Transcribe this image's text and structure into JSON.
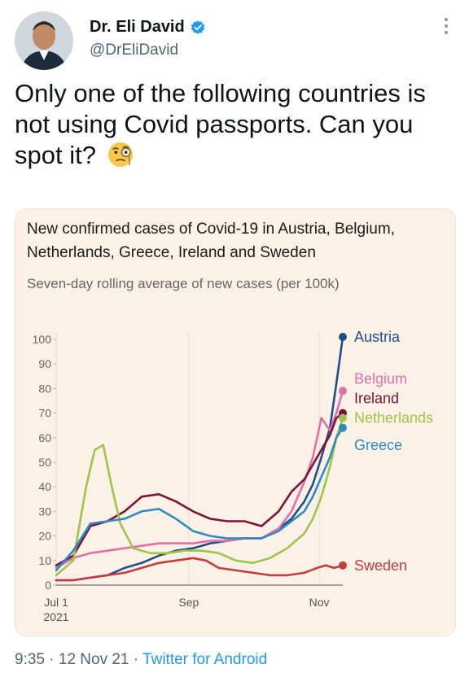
{
  "author": {
    "name": "Dr. Eli David",
    "handle": "@DrEliDavid",
    "avatar_icon": "avatar-photo",
    "verified_color": "#1d9bf0"
  },
  "tweet": {
    "text": "Only one of the following countries is not using Covid passports. Can you spot it?",
    "emoji_icon": "face-with-monocle"
  },
  "footer": {
    "time": "9:35",
    "separator": "·",
    "date": "12 Nov 21",
    "source": "Twitter for Android"
  },
  "chart_data": {
    "type": "line",
    "title": "New confirmed cases of Covid-19 in Austria, Belgium, Netherlands, Greece, Ireland and Sweden",
    "subtitle": "Seven-day rolling average of new cases (per 100k)",
    "ylim": [
      0,
      100
    ],
    "yticks": [
      0,
      10,
      20,
      30,
      40,
      50,
      60,
      70,
      80,
      90,
      100
    ],
    "xticks": [
      {
        "label": "Jul 1",
        "sublabel": "2021",
        "day": 0
      },
      {
        "label": "Sep",
        "sublabel": "",
        "day": 62
      },
      {
        "label": "Nov",
        "sublabel": "",
        "day": 123
      }
    ],
    "xlim_days": [
      0,
      134
    ],
    "grid": "vertical",
    "series": [
      {
        "name": "Austria",
        "color": "#1f4e8c",
        "x": [
          0,
          8,
          16,
          24,
          32,
          40,
          48,
          56,
          64,
          72,
          80,
          88,
          96,
          104,
          110,
          116,
          120,
          124,
          128,
          131,
          134
        ],
        "y": [
          2,
          2,
          3,
          4,
          7,
          9,
          12,
          14,
          15,
          17,
          18,
          19,
          19,
          23,
          27,
          34,
          41,
          52,
          64,
          82,
          101
        ]
      },
      {
        "name": "Belgium",
        "color": "#e070a9",
        "x": [
          0,
          8,
          16,
          24,
          32,
          40,
          48,
          56,
          64,
          72,
          80,
          88,
          96,
          104,
          110,
          116,
          120,
          124,
          128,
          131,
          134
        ],
        "y": [
          7,
          11,
          13,
          14,
          15,
          16,
          17,
          17,
          17,
          18,
          18,
          19,
          19,
          23,
          30,
          42,
          52,
          68,
          63,
          70,
          79
        ]
      },
      {
        "name": "Ireland",
        "color": "#7d1238",
        "x": [
          0,
          8,
          16,
          24,
          32,
          40,
          48,
          56,
          64,
          72,
          80,
          88,
          96,
          104,
          110,
          116,
          120,
          124,
          128,
          131,
          134
        ],
        "y": [
          8,
          12,
          24,
          26,
          30,
          36,
          37,
          34,
          30,
          27,
          26,
          26,
          24,
          30,
          38,
          43,
          49,
          55,
          61,
          68,
          70
        ]
      },
      {
        "name": "Netherlands",
        "color": "#9cc54a",
        "x": [
          0,
          8,
          14,
          18,
          22,
          26,
          30,
          36,
          44,
          52,
          60,
          68,
          76,
          84,
          92,
          100,
          108,
          116,
          120,
          124,
          128,
          131,
          134
        ],
        "y": [
          4,
          10,
          40,
          55,
          57,
          40,
          25,
          15,
          13,
          13,
          14,
          14,
          13,
          10,
          9,
          11,
          15,
          21,
          27,
          36,
          48,
          60,
          68
        ]
      },
      {
        "name": "Greece",
        "color": "#2d8bbf",
        "x": [
          0,
          8,
          16,
          24,
          32,
          40,
          48,
          56,
          64,
          72,
          80,
          88,
          96,
          104,
          110,
          116,
          120,
          124,
          128,
          131,
          134
        ],
        "y": [
          6,
          14,
          25,
          26,
          27,
          30,
          31,
          27,
          22,
          20,
          19,
          19,
          19,
          22,
          26,
          30,
          36,
          44,
          52,
          60,
          64
        ]
      },
      {
        "name": "Sweden",
        "color": "#c63b3b",
        "x": [
          0,
          8,
          16,
          24,
          32,
          40,
          48,
          56,
          64,
          70,
          76,
          84,
          92,
          100,
          108,
          116,
          122,
          126,
          130,
          134
        ],
        "y": [
          2,
          2,
          3,
          4,
          5,
          7,
          9,
          10,
          11,
          10,
          7,
          6,
          5,
          4,
          4,
          5,
          7,
          8,
          7,
          8
        ]
      }
    ],
    "end_labels": [
      {
        "name": "Austria",
        "label_y": 101
      },
      {
        "name": "Belgium",
        "label_y": 84
      },
      {
        "name": "Ireland",
        "label_y": 76
      },
      {
        "name": "Netherlands",
        "label_y": 68
      },
      {
        "name": "Greece",
        "label_y": 57
      },
      {
        "name": "Sweden",
        "label_y": 8
      }
    ]
  }
}
